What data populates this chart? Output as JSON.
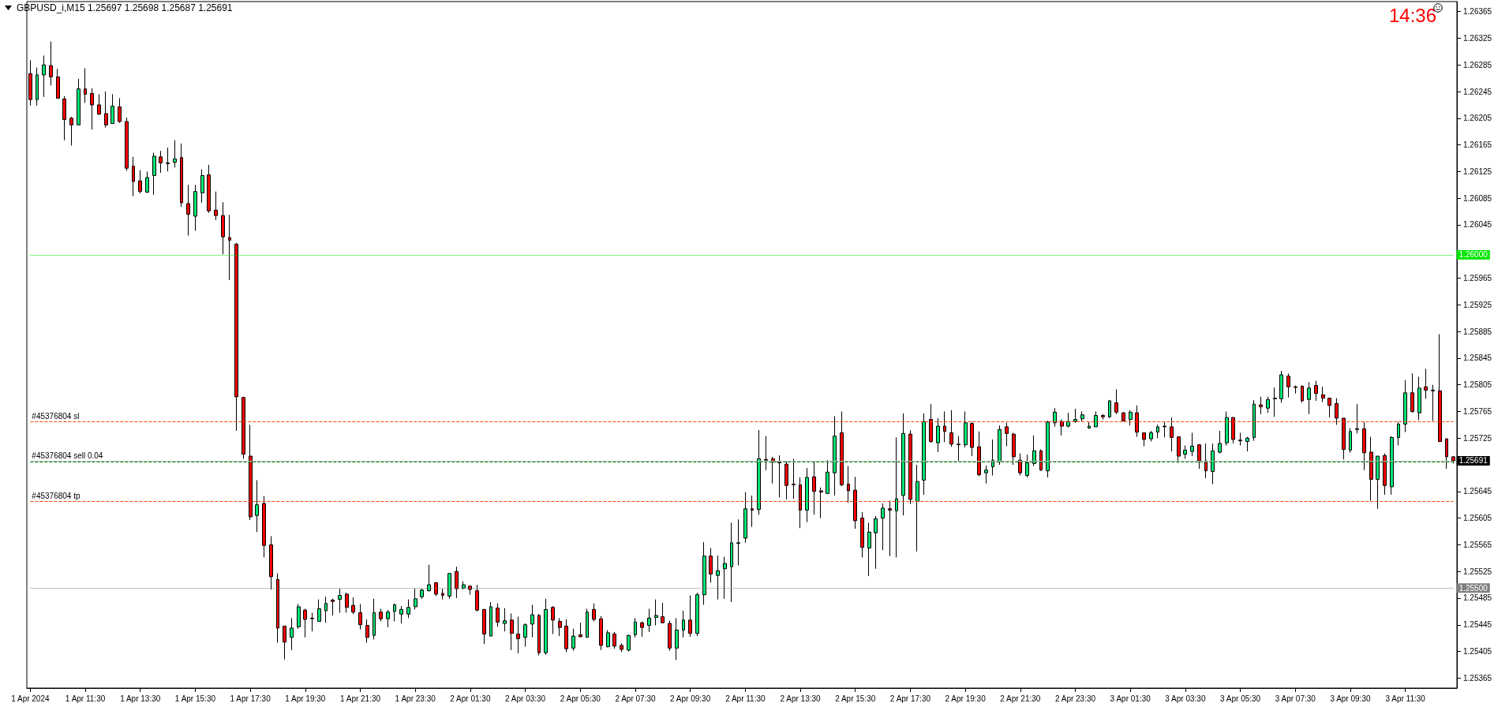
{
  "chart_data": {
    "type": "candlestick",
    "title": "GBPUSD_i,M15  1.25697 1.25698 1.25687 1.25691",
    "annotations": [
      "14:36"
    ],
    "categories": [
      "1 Apr 2024",
      null,
      null,
      null,
      null,
      null,
      null,
      null,
      "1 Apr 11:30",
      null,
      null,
      null,
      null,
      null,
      null,
      null,
      "1 Apr 13:30",
      null,
      null,
      null,
      null,
      null,
      null,
      null,
      "1 Apr 15:30",
      null,
      null,
      null,
      null,
      null,
      null,
      null,
      "1 Apr 17:30",
      null,
      null,
      null,
      null,
      null,
      null,
      null,
      "1 Apr 19:30",
      null,
      null,
      null,
      null,
      null,
      null,
      null,
      "1 Apr 21:30",
      null,
      null,
      null,
      null,
      null,
      null,
      null,
      "1 Apr 23:30",
      null,
      null,
      null,
      null,
      null,
      null,
      null,
      "2 Apr 01:30",
      null,
      null,
      null,
      null,
      null,
      null,
      null,
      "2 Apr 03:30",
      null,
      null,
      null,
      null,
      null,
      null,
      null,
      "2 Apr 05:30",
      null,
      null,
      null,
      null,
      null,
      null,
      null,
      "2 Apr 07:30",
      null,
      null,
      null,
      null,
      null,
      null,
      null,
      "2 Apr 09:30",
      null,
      null,
      null,
      null,
      null,
      null,
      null,
      "2 Apr 11:30",
      null,
      null,
      null,
      null,
      null,
      null,
      null,
      "2 Apr 13:30",
      null,
      null,
      null,
      null,
      null,
      null,
      null,
      "2 Apr 15:30",
      null,
      null,
      null,
      null,
      null,
      null,
      null,
      "2 Apr 17:30",
      null,
      null,
      null,
      null,
      null,
      null,
      null,
      "2 Apr 19:30",
      null,
      null,
      null,
      null,
      null,
      null,
      null,
      "2 Apr 21:30",
      null,
      null,
      null,
      null,
      null,
      null,
      null,
      "2 Apr 23:30",
      null,
      null,
      null,
      null,
      null,
      null,
      null,
      "3 Apr 01:30",
      null,
      null,
      null,
      null,
      null,
      null,
      null,
      "3 Apr 03:30",
      null,
      null,
      null,
      null,
      null,
      null,
      null,
      "3 Apr 05:30",
      null,
      null,
      null,
      null,
      null,
      null,
      null,
      "3 Apr 07:30",
      null,
      null,
      null,
      null,
      null,
      null,
      null,
      "3 Apr 09:30",
      null,
      null,
      null,
      null,
      null,
      null,
      null,
      "3 Apr 11:30",
      null,
      null,
      null,
      null,
      null,
      null,
      null
    ],
    "ohlc": [
      [
        1.26272,
        1.26292,
        1.26224,
        1.26233
      ],
      [
        1.26233,
        1.26281,
        1.26224,
        1.2627
      ],
      [
        1.2627,
        1.26299,
        1.26237,
        1.26285
      ],
      [
        1.26284,
        1.2632,
        1.26254,
        1.26267
      ],
      [
        1.26267,
        1.26279,
        1.26234,
        1.26235
      ],
      [
        1.26234,
        1.26238,
        1.26172,
        1.26203
      ],
      [
        1.26205,
        1.26207,
        1.26164,
        1.26195
      ],
      [
        1.26195,
        1.26264,
        1.26195,
        1.26249
      ],
      [
        1.26249,
        1.2628,
        1.26228,
        1.26241
      ],
      [
        1.26242,
        1.2625,
        1.26188,
        1.26225
      ],
      [
        1.26225,
        1.26241,
        1.2621,
        1.26211
      ],
      [
        1.26212,
        1.26245,
        1.26191,
        1.26195
      ],
      [
        1.26197,
        1.26241,
        1.26197,
        1.26223
      ],
      [
        1.26222,
        1.26235,
        1.26198,
        1.262
      ],
      [
        1.262,
        1.26206,
        1.26126,
        1.2613
      ],
      [
        1.26133,
        1.26147,
        1.26088,
        1.2611
      ],
      [
        1.26111,
        1.26127,
        1.26092,
        1.26095
      ],
      [
        1.26094,
        1.26125,
        1.26093,
        1.26116
      ],
      [
        1.26119,
        1.26153,
        1.2609,
        1.26148
      ],
      [
        1.26147,
        1.26156,
        1.26123,
        1.26138
      ],
      [
        1.26138,
        1.26161,
        1.26125,
        1.26137
      ],
      [
        1.26139,
        1.26172,
        1.26131,
        1.26144
      ],
      [
        1.26146,
        1.26167,
        1.26072,
        1.26078
      ],
      [
        1.26077,
        1.26105,
        1.26029,
        1.26061
      ],
      [
        1.26058,
        1.26105,
        1.26036,
        1.26095
      ],
      [
        1.26093,
        1.26128,
        1.26078,
        1.26119
      ],
      [
        1.2612,
        1.26135,
        1.26063,
        1.26066
      ],
      [
        1.26067,
        1.26095,
        1.26052,
        1.26059
      ],
      [
        1.26059,
        1.26079,
        1.26001,
        1.26027
      ],
      [
        1.26026,
        1.2606,
        1.25962,
        1.26022
      ],
      [
        1.26016,
        1.26018,
        1.25736,
        1.25787
      ],
      [
        1.25786,
        1.25787,
        1.25694,
        1.25701
      ],
      [
        1.25698,
        1.25745,
        1.25602,
        1.25607
      ],
      [
        1.25609,
        1.25662,
        1.25584,
        1.25625
      ],
      [
        1.25627,
        1.25638,
        1.25546,
        1.25564
      ],
      [
        1.25565,
        1.25578,
        1.25498,
        1.25517
      ],
      [
        1.25513,
        1.25522,
        1.25418,
        1.2544
      ],
      [
        1.25443,
        1.25443,
        1.25393,
        1.25419
      ],
      [
        1.25426,
        1.25455,
        1.25407,
        1.2544
      ],
      [
        1.25442,
        1.25476,
        1.25439,
        1.25472
      ],
      [
        1.25467,
        1.25469,
        1.25426,
        1.25453
      ],
      [
        1.25455,
        1.25463,
        1.25435,
        1.25454
      ],
      [
        1.2545,
        1.25483,
        1.2545,
        1.25469
      ],
      [
        1.25466,
        1.25487,
        1.25448,
        1.25477
      ],
      [
        1.25482,
        1.25484,
        1.25459,
        1.2548
      ],
      [
        1.25483,
        1.25499,
        1.25463,
        1.25489
      ],
      [
        1.25491,
        1.25493,
        1.25463,
        1.25471
      ],
      [
        1.25474,
        1.25486,
        1.25461,
        1.25464
      ],
      [
        1.25463,
        1.25476,
        1.25438,
        1.25445
      ],
      [
        1.25444,
        1.25453,
        1.25418,
        1.25426
      ],
      [
        1.25429,
        1.25484,
        1.25423,
        1.25463
      ],
      [
        1.25464,
        1.25469,
        1.2545,
        1.25454
      ],
      [
        1.25454,
        1.25467,
        1.25441,
        1.25464
      ],
      [
        1.25465,
        1.25477,
        1.2545,
        1.25475
      ],
      [
        1.25461,
        1.25473,
        1.25447,
        1.25468
      ],
      [
        1.25461,
        1.25483,
        1.25455,
        1.25471
      ],
      [
        1.25472,
        1.25499,
        1.25468,
        1.25484
      ],
      [
        1.25487,
        1.25499,
        1.25484,
        1.25497
      ],
      [
        1.25496,
        1.25535,
        1.25495,
        1.25505
      ],
      [
        1.25508,
        1.25509,
        1.25488,
        1.25491
      ],
      [
        1.25492,
        1.25499,
        1.25483,
        1.25489
      ],
      [
        1.25488,
        1.25522,
        1.25484,
        1.25522
      ],
      [
        1.25525,
        1.25532,
        1.25485,
        1.25499
      ],
      [
        1.255,
        1.2551,
        1.25498,
        1.25505
      ],
      [
        1.25503,
        1.25503,
        1.2549,
        1.25498
      ],
      [
        1.25496,
        1.25505,
        1.25465,
        1.25467
      ],
      [
        1.25468,
        1.25468,
        1.25416,
        1.25431
      ],
      [
        1.25428,
        1.25479,
        1.25428,
        1.25472
      ],
      [
        1.2547,
        1.25477,
        1.25442,
        1.25449
      ],
      [
        1.25447,
        1.2547,
        1.25435,
        1.25451
      ],
      [
        1.25452,
        1.25462,
        1.25407,
        1.25432
      ],
      [
        1.25431,
        1.25457,
        1.25402,
        1.25424
      ],
      [
        1.25426,
        1.25447,
        1.25412,
        1.25445
      ],
      [
        1.25446,
        1.25475,
        1.25426,
        1.2546
      ],
      [
        1.25459,
        1.25461,
        1.25399,
        1.25403
      ],
      [
        1.25403,
        1.25484,
        1.254,
        1.25468
      ],
      [
        1.25471,
        1.25473,
        1.25431,
        1.25452
      ],
      [
        1.2545,
        1.25455,
        1.25428,
        1.25441
      ],
      [
        1.25443,
        1.25453,
        1.25404,
        1.25409
      ],
      [
        1.2541,
        1.25439,
        1.25406,
        1.25428
      ],
      [
        1.2543,
        1.25448,
        1.25426,
        1.25427
      ],
      [
        1.25426,
        1.25469,
        1.25426,
        1.25464
      ],
      [
        1.25468,
        1.25477,
        1.2545,
        1.25453
      ],
      [
        1.25454,
        1.25458,
        1.25407,
        1.25414
      ],
      [
        1.25412,
        1.25437,
        1.25411,
        1.25433
      ],
      [
        1.25431,
        1.25434,
        1.25409,
        1.25413
      ],
      [
        1.25414,
        1.25417,
        1.25404,
        1.25408
      ],
      [
        1.25407,
        1.2543,
        1.25405,
        1.25429
      ],
      [
        1.2543,
        1.25455,
        1.25426,
        1.25449
      ],
      [
        1.25448,
        1.2545,
        1.25427,
        1.25441
      ],
      [
        1.25444,
        1.25469,
        1.25434,
        1.25455
      ],
      [
        1.25456,
        1.25483,
        1.25444,
        1.25459
      ],
      [
        1.25457,
        1.25478,
        1.25447,
        1.25448
      ],
      [
        1.25447,
        1.25451,
        1.25406,
        1.2541
      ],
      [
        1.2541,
        1.25455,
        1.25392,
        1.25437
      ],
      [
        1.25437,
        1.25466,
        1.25426,
        1.25452
      ],
      [
        1.25452,
        1.25489,
        1.25427,
        1.25432
      ],
      [
        1.25432,
        1.25493,
        1.25428,
        1.2549
      ],
      [
        1.2549,
        1.25569,
        1.25475,
        1.25548
      ],
      [
        1.25548,
        1.2556,
        1.25508,
        1.25521
      ],
      [
        1.25519,
        1.25549,
        1.25483,
        1.25526
      ],
      [
        1.25529,
        1.25547,
        1.25484,
        1.25537
      ],
      [
        1.25532,
        1.25598,
        1.25479,
        1.25568
      ],
      [
        1.25567,
        1.25603,
        1.25534,
        1.25568
      ],
      [
        1.25575,
        1.25644,
        1.25568,
        1.25619
      ],
      [
        1.25619,
        1.25639,
        1.25592,
        1.25617
      ],
      [
        1.25618,
        1.25737,
        1.2561,
        1.25694
      ],
      [
        1.25693,
        1.25728,
        1.25677,
        1.25692
      ],
      [
        1.25694,
        1.25697,
        1.25657,
        1.25689
      ],
      [
        1.25689,
        1.25699,
        1.25636,
        1.25688
      ],
      [
        1.25686,
        1.2569,
        1.25633,
        1.25654
      ],
      [
        1.25656,
        1.25694,
        1.25634,
        1.25655
      ],
      [
        1.25655,
        1.25666,
        1.2559,
        1.25617
      ],
      [
        1.25617,
        1.2568,
        1.25599,
        1.25666
      ],
      [
        1.25667,
        1.25691,
        1.2561,
        1.25645
      ],
      [
        1.25646,
        1.25651,
        1.25605,
        1.25644
      ],
      [
        1.25642,
        1.25692,
        1.25641,
        1.25674
      ],
      [
        1.25673,
        1.25758,
        1.25639,
        1.25728
      ],
      [
        1.25733,
        1.25765,
        1.25653,
        1.25655
      ],
      [
        1.25656,
        1.25683,
        1.25628,
        1.25646
      ],
      [
        1.25647,
        1.25667,
        1.25589,
        1.25601
      ],
      [
        1.25605,
        1.25614,
        1.25546,
        1.25561
      ],
      [
        1.2556,
        1.25598,
        1.25518,
        1.25584
      ],
      [
        1.25583,
        1.25608,
        1.25529,
        1.25604
      ],
      [
        1.25605,
        1.25627,
        1.25557,
        1.2562
      ],
      [
        1.25619,
        1.25631,
        1.25548,
        1.25617
      ],
      [
        1.25616,
        1.25726,
        1.25546,
        1.25634
      ],
      [
        1.25639,
        1.25762,
        1.25609,
        1.25732
      ],
      [
        1.25731,
        1.25737,
        1.25626,
        1.25633
      ],
      [
        1.2563,
        1.25685,
        1.25555,
        1.2566
      ],
      [
        1.25662,
        1.25762,
        1.2564,
        1.2575
      ],
      [
        1.25753,
        1.25776,
        1.25718,
        1.2572
      ],
      [
        1.25718,
        1.25755,
        1.25704,
        1.25743
      ],
      [
        1.25743,
        1.25765,
        1.25719,
        1.25735
      ],
      [
        1.25733,
        1.25767,
        1.25712,
        1.25716
      ],
      [
        1.25716,
        1.25728,
        1.25691,
        1.25715
      ],
      [
        1.25715,
        1.25765,
        1.25711,
        1.25748
      ],
      [
        1.25747,
        1.25749,
        1.25698,
        1.25711
      ],
      [
        1.25712,
        1.25735,
        1.25668,
        1.2567
      ],
      [
        1.25673,
        1.25684,
        1.25657,
        1.25677
      ],
      [
        1.25682,
        1.25723,
        1.25669,
        1.25692
      ],
      [
        1.2569,
        1.25744,
        1.25685,
        1.25738
      ],
      [
        1.25742,
        1.25748,
        1.25713,
        1.25732
      ],
      [
        1.25731,
        1.25733,
        1.25685,
        1.25697
      ],
      [
        1.25692,
        1.25702,
        1.25669,
        1.25673
      ],
      [
        1.25669,
        1.257,
        1.25666,
        1.25688
      ],
      [
        1.25687,
        1.25729,
        1.25683,
        1.25706
      ],
      [
        1.25706,
        1.25708,
        1.25676,
        1.25677
      ],
      [
        1.25676,
        1.25751,
        1.25666,
        1.25749
      ],
      [
        1.25748,
        1.2577,
        1.25742,
        1.25764
      ],
      [
        1.2575,
        1.25753,
        1.25729,
        1.25743
      ],
      [
        1.25743,
        1.25763,
        1.25741,
        1.2575
      ],
      [
        1.2575,
        1.25769,
        1.25748,
        1.25753
      ],
      [
        1.25754,
        1.25765,
        1.2575,
        1.2576
      ],
      [
        1.2574,
        1.2575,
        1.25739,
        1.25743
      ],
      [
        1.25742,
        1.25765,
        1.25742,
        1.25759
      ],
      [
        1.25759,
        1.25761,
        1.25753,
        1.25757
      ],
      [
        1.25757,
        1.25782,
        1.25755,
        1.25781
      ],
      [
        1.25778,
        1.25798,
        1.25761,
        1.25764
      ],
      [
        1.25763,
        1.25764,
        1.2575,
        1.25751
      ],
      [
        1.25753,
        1.25767,
        1.25744,
        1.25764
      ],
      [
        1.25763,
        1.25774,
        1.25727,
        1.25734
      ],
      [
        1.25733,
        1.25733,
        1.25713,
        1.25723
      ],
      [
        1.25724,
        1.25736,
        1.2572,
        1.25733
      ],
      [
        1.25734,
        1.25745,
        1.25725,
        1.25742
      ],
      [
        1.25743,
        1.25749,
        1.25726,
        1.25742
      ],
      [
        1.25742,
        1.25756,
        1.25705,
        1.25726
      ],
      [
        1.25727,
        1.25727,
        1.25688,
        1.25698
      ],
      [
        1.25701,
        1.25714,
        1.25694,
        1.25707
      ],
      [
        1.25705,
        1.25733,
        1.25698,
        1.25713
      ],
      [
        1.25715,
        1.25716,
        1.25679,
        1.25691
      ],
      [
        1.25691,
        1.25717,
        1.25665,
        1.25676
      ],
      [
        1.25675,
        1.25717,
        1.25656,
        1.25706
      ],
      [
        1.25704,
        1.25736,
        1.25702,
        1.25717
      ],
      [
        1.25718,
        1.25765,
        1.25714,
        1.25756
      ],
      [
        1.25756,
        1.25756,
        1.25717,
        1.25723
      ],
      [
        1.25722,
        1.25733,
        1.25714,
        1.25721
      ],
      [
        1.2572,
        1.25727,
        1.25705,
        1.25725
      ],
      [
        1.25726,
        1.25782,
        1.25721,
        1.25776
      ],
      [
        1.25775,
        1.25787,
        1.25761,
        1.25772
      ],
      [
        1.2577,
        1.25787,
        1.25763,
        1.25783
      ],
      [
        1.25785,
        1.25801,
        1.25757,
        1.25784
      ],
      [
        1.25784,
        1.25826,
        1.25778,
        1.2582
      ],
      [
        1.25818,
        1.25822,
        1.25786,
        1.25802
      ],
      [
        1.25802,
        1.25804,
        1.25792,
        1.25801
      ],
      [
        1.25803,
        1.25804,
        1.25778,
        1.25781
      ],
      [
        1.25783,
        1.25809,
        1.25761,
        1.258
      ],
      [
        1.25804,
        1.25811,
        1.25781,
        1.25792
      ],
      [
        1.2579,
        1.25802,
        1.25779,
        1.25785
      ],
      [
        1.25785,
        1.25785,
        1.25756,
        1.25774
      ],
      [
        1.25777,
        1.25785,
        1.25745,
        1.25755
      ],
      [
        1.25755,
        1.25755,
        1.25693,
        1.25708
      ],
      [
        1.25707,
        1.2574,
        1.25703,
        1.25735
      ],
      [
        1.25739,
        1.25776,
        1.25732,
        1.25738
      ],
      [
        1.25739,
        1.25749,
        1.25677,
        1.25703
      ],
      [
        1.25704,
        1.25727,
        1.25631,
        1.25663
      ],
      [
        1.25663,
        1.25698,
        1.25619,
        1.25698
      ],
      [
        1.25699,
        1.25702,
        1.2564,
        1.25654
      ],
      [
        1.25652,
        1.25728,
        1.2564,
        1.25726
      ],
      [
        1.25726,
        1.25749,
        1.25714,
        1.25746
      ],
      [
        1.25746,
        1.25812,
        1.25734,
        1.25793
      ],
      [
        1.25793,
        1.25822,
        1.25763,
        1.25765
      ],
      [
        1.25763,
        1.25817,
        1.25752,
        1.258
      ],
      [
        1.25802,
        1.25829,
        1.25784,
        1.25797
      ],
      [
        1.25797,
        1.25805,
        1.25751,
        1.25796
      ],
      [
        1.25796,
        1.25881,
        1.25719,
        1.2572
      ],
      [
        1.25724,
        1.25724,
        1.25679,
        1.25697
      ],
      [
        1.25697,
        1.25698,
        1.25687,
        1.25691
      ]
    ],
    "ylim": [
      1.2535,
      1.2638
    ],
    "yticks": [
      1.25365,
      1.25405,
      1.25445,
      1.25485,
      1.25525,
      1.25565,
      1.25605,
      1.25645,
      1.25725,
      1.25765,
      1.25805,
      1.25845,
      1.25885,
      1.25925,
      1.25965,
      1.26045,
      1.26085,
      1.26125,
      1.26165,
      1.26205,
      1.26245,
      1.26285,
      1.26325,
      1.26365
    ],
    "ref_lines": [
      {
        "axis": "y",
        "value": 1.26,
        "label": "1.26000",
        "color": "#00e600",
        "line_style": "dotted"
      },
      {
        "axis": "y",
        "value": 1.255,
        "label": "1.25500",
        "color": "#808080",
        "line_style": "dotted"
      },
      {
        "axis": "y",
        "value": 1.25691,
        "label": "1.25691",
        "color": "#c0c0c0",
        "line_style": "solid"
      },
      {
        "axis": "y",
        "value": 1.2575,
        "label": "#45376804 sl",
        "color": "#ff4500",
        "line_style": "dashed"
      },
      {
        "axis": "y",
        "value": 1.2569,
        "label": "#45376804 sell 0.04",
        "color": "#008000",
        "line_style": "dashed"
      },
      {
        "axis": "y",
        "value": 1.2563,
        "label": "#45376804 tp",
        "color": "#ff4500",
        "line_style": "dashed"
      }
    ]
  }
}
